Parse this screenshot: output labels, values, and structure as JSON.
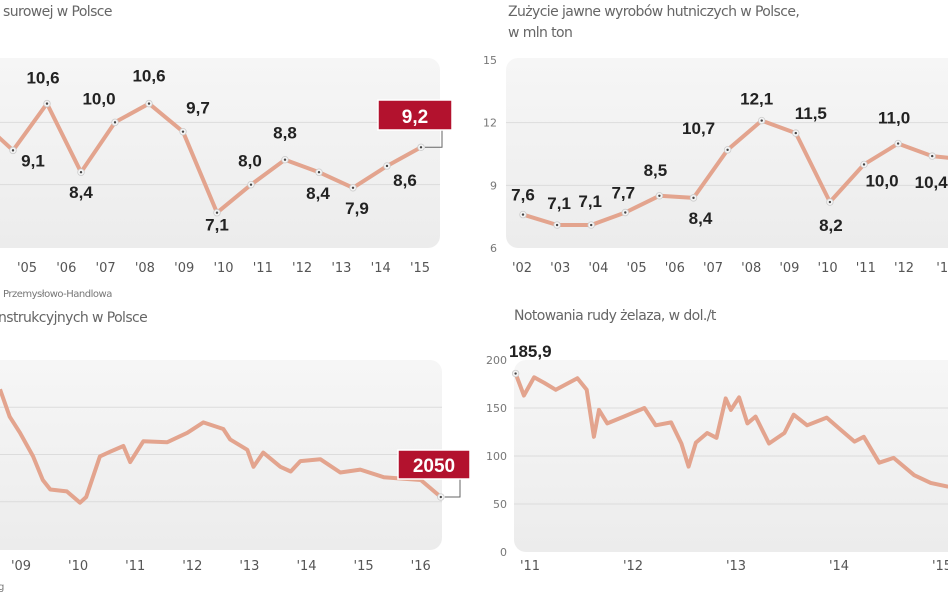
{
  "colors": {
    "line": "#e3a48e",
    "panel": "#efefef",
    "grid": "#dcdcdc",
    "highlight": "#b3122e",
    "marker": "#444444"
  },
  "texts": {
    "tl_title": "surowej w Polsce",
    "tl_source": "Przemysłowo-Handlowa",
    "tr_title_1": "Zużycie jawne wyrobów hutniczych w Polsce,",
    "tr_title_2": "w mln ton",
    "bl_title": "nstrukcyjnych w Polsce",
    "bl_source": "g",
    "br_title": "Notowania rudy żelaza, w dol./t"
  },
  "chart_data": [
    {
      "type": "line",
      "title": "surowej w Polsce",
      "x": [
        2004,
        2005,
        2006,
        2007,
        2008,
        2009,
        2010,
        2011,
        2012,
        2013,
        2014,
        2015
      ],
      "values": [
        10.6,
        8.4,
        10.0,
        10.6,
        9.7,
        7.1,
        8.0,
        8.8,
        8.4,
        7.9,
        8.6,
        9.2
      ],
      "leading_value": 9.1,
      "labels": [
        "9,1",
        "10,6",
        "8,4",
        "10,0",
        "10,6",
        "9,7",
        "7,1",
        "8,0",
        "8,8",
        "8,4",
        "7,9",
        "8,6"
      ],
      "highlight_label": "9,2",
      "xticks": [
        "'05",
        "'06",
        "'07",
        "'08",
        "'09",
        "'10",
        "'11",
        "'12",
        "'13",
        "'14",
        "'15"
      ],
      "ylim": [
        6,
        12
      ],
      "gridlines": [
        8,
        10
      ],
      "grid": true
    },
    {
      "type": "line",
      "title": "Zużycie jawne wyrobów hutniczych w Polsce, w mln ton",
      "values": [
        7.6,
        7.1,
        7.1,
        7.7,
        8.5,
        8.4,
        10.7,
        12.1,
        11.5,
        8.2,
        10.0,
        11.0,
        10.4
      ],
      "labels": [
        "7,6",
        "7,1",
        "7,1",
        "7,7",
        "8,5",
        "8,4",
        "10,7",
        "12,1",
        "11,5",
        "8,2",
        "10,0",
        "11,0",
        "10,4"
      ],
      "xticks": [
        "'02",
        "'03",
        "'04",
        "'05",
        "'06",
        "'07",
        "'08",
        "'09",
        "'10",
        "'11",
        "'12",
        "'1"
      ],
      "yticks": [
        "15",
        "12",
        "9",
        "6"
      ],
      "ylim": [
        6,
        15
      ],
      "grid": true
    },
    {
      "type": "line",
      "title": "nstrukcyjnych w Polsce",
      "x": [
        2008.65,
        2008.82,
        2009.0,
        2009.23,
        2009.4,
        2009.53,
        2009.82,
        2010.05,
        2010.16,
        2010.4,
        2010.58,
        2010.81,
        2010.93,
        2011.16,
        2011.58,
        2011.93,
        2012.21,
        2012.56,
        2012.68,
        2012.98,
        2013.09,
        2013.26,
        2013.56,
        2013.74,
        2013.91,
        2014.26,
        2014.61,
        2014.96,
        2015.37,
        2016.02,
        2016.37
      ],
      "y": [
        3190,
        2900,
        2730,
        2480,
        2230,
        2130,
        2110,
        1990,
        2050,
        2480,
        2530,
        2590,
        2420,
        2640,
        2630,
        2730,
        2840,
        2770,
        2660,
        2550,
        2370,
        2520,
        2370,
        2320,
        2430,
        2450,
        2310,
        2340,
        2260,
        2230,
        2050
      ],
      "highlight_label": "2050",
      "xticks": [
        "'09",
        "'10",
        "'11",
        "'12",
        "'13",
        "'14",
        "'15",
        "'16"
      ],
      "ylim": [
        1500,
        3500
      ],
      "gridlines": [
        2000,
        2500,
        3000
      ],
      "grid": true
    },
    {
      "type": "line",
      "title": "Notowania rudy żelaza, w dol./t",
      "x": [
        2010.87,
        2010.95,
        2011.05,
        2011.15,
        2011.26,
        2011.47,
        2011.56,
        2011.63,
        2011.68,
        2011.76,
        2011.92,
        2012.12,
        2012.23,
        2012.38,
        2012.48,
        2012.55,
        2012.62,
        2012.73,
        2012.82,
        2012.91,
        2012.96,
        2013.04,
        2013.12,
        2013.2,
        2013.33,
        2013.48,
        2013.57,
        2013.7,
        2013.89,
        2014.03,
        2014.16,
        2014.25,
        2014.4,
        2014.54,
        2014.74,
        2014.9,
        2015.07
      ],
      "y": [
        185.9,
        163,
        182,
        176,
        169,
        181,
        169,
        120,
        148,
        134,
        141,
        150,
        132,
        135,
        113,
        89,
        114,
        124,
        119,
        160,
        148,
        161,
        134,
        141,
        113,
        124,
        143,
        132,
        140,
        127,
        115,
        120,
        93,
        98,
        80,
        72,
        68
      ],
      "first_label": "185,9",
      "xticks": [
        "'11",
        "'12",
        "'13",
        "'14",
        "'15"
      ],
      "yticks": [
        "200",
        "150",
        "100",
        "50",
        "0"
      ],
      "ylim": [
        0,
        200
      ],
      "grid": true
    }
  ]
}
